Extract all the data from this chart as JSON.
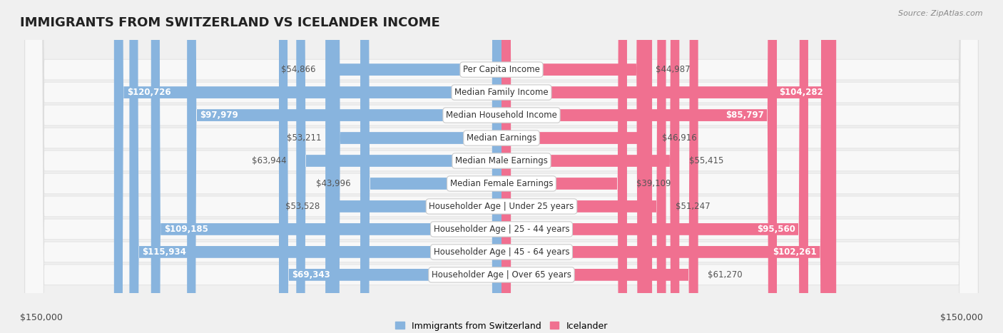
{
  "title": "IMMIGRANTS FROM SWITZERLAND VS ICELANDER INCOME",
  "source": "Source: ZipAtlas.com",
  "categories": [
    "Per Capita Income",
    "Median Family Income",
    "Median Household Income",
    "Median Earnings",
    "Median Male Earnings",
    "Median Female Earnings",
    "Householder Age | Under 25 years",
    "Householder Age | 25 - 44 years",
    "Householder Age | 45 - 64 years",
    "Householder Age | Over 65 years"
  ],
  "swiss_values": [
    54866,
    120726,
    97979,
    53211,
    63944,
    43996,
    53528,
    109185,
    115934,
    69343
  ],
  "iceland_values": [
    44987,
    104282,
    85797,
    46916,
    55415,
    39109,
    51247,
    95560,
    102261,
    61270
  ],
  "swiss_labels": [
    "$54,866",
    "$120,726",
    "$97,979",
    "$53,211",
    "$63,944",
    "$43,996",
    "$53,528",
    "$109,185",
    "$115,934",
    "$69,343"
  ],
  "iceland_labels": [
    "$44,987",
    "$104,282",
    "$85,797",
    "$46,916",
    "$55,415",
    "$39,109",
    "$51,247",
    "$95,560",
    "$102,261",
    "$61,270"
  ],
  "max_val": 150000,
  "swiss_color": "#88b4de",
  "iceland_color": "#f07090",
  "background_color": "#f0f0f0",
  "row_bg_color": "#f8f8f8",
  "row_border_color": "#dddddd",
  "legend_swiss": "Immigrants from Switzerland",
  "legend_iceland": "Icelander",
  "xlabel_left": "$150,000",
  "xlabel_right": "$150,000",
  "inside_threshold": 65000,
  "label_fontsize": 8.5,
  "cat_fontsize": 8.5,
  "title_fontsize": 13
}
